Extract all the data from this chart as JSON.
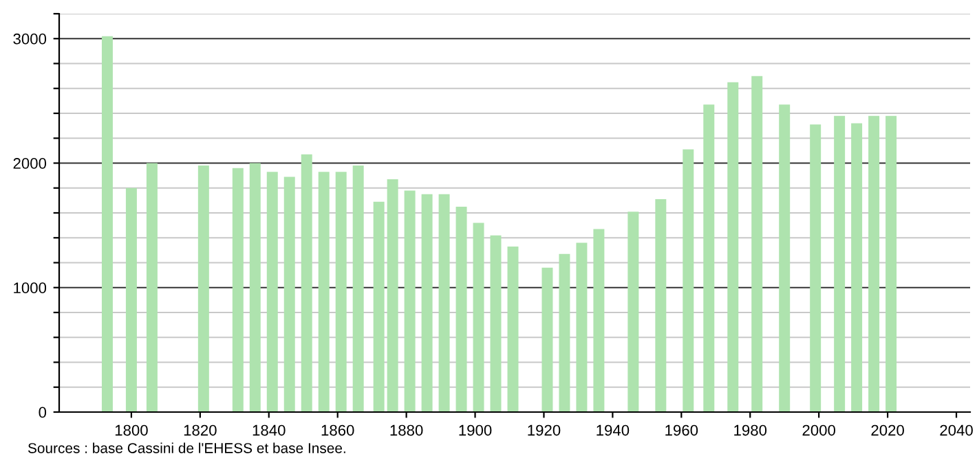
{
  "chart_data": {
    "type": "bar",
    "x": [
      1793,
      1800,
      1806,
      1821,
      1831,
      1836,
      1841,
      1846,
      1851,
      1856,
      1861,
      1866,
      1872,
      1876,
      1881,
      1886,
      1891,
      1896,
      1901,
      1906,
      1911,
      1921,
      1926,
      1931,
      1936,
      1946,
      1954,
      1962,
      1968,
      1975,
      1982,
      1990,
      1999,
      2006,
      2011,
      2016,
      2021
    ],
    "values": [
      3020,
      1800,
      2000,
      1980,
      1960,
      2000,
      1930,
      1890,
      2070,
      1930,
      1930,
      1980,
      1690,
      1870,
      1780,
      1750,
      1750,
      1650,
      1520,
      1420,
      1330,
      1160,
      1270,
      1360,
      1470,
      1610,
      1710,
      2110,
      2470,
      2650,
      2700,
      2470,
      2310,
      2380,
      2320,
      2380,
      2380
    ],
    "color": "#aee3ae",
    "xlim": [
      1779,
      2044
    ],
    "xticks": [
      1800,
      1820,
      1840,
      1860,
      1880,
      1900,
      1920,
      1940,
      1960,
      1980,
      2000,
      2020,
      2040
    ],
    "ylim": [
      0,
      3200
    ],
    "yticks": [
      0,
      {
        "value": 200,
        "label": null
      },
      {
        "value": 400,
        "label": null
      },
      {
        "value": 600,
        "label": null
      },
      {
        "value": 800,
        "label": null
      },
      1000,
      {
        "value": 1200,
        "label": null
      },
      {
        "value": 1400,
        "label": null
      },
      {
        "value": 1600,
        "label": null
      },
      {
        "value": 1800,
        "label": null
      },
      2000,
      {
        "value": 2200,
        "label": null
      },
      {
        "value": 2400,
        "label": null
      },
      {
        "value": 2600,
        "label": null
      },
      {
        "value": 2800,
        "label": null
      },
      3000,
      {
        "value": 3200,
        "label": null
      }
    ],
    "grid": "y",
    "annotations": [
      "Sources : base Cassini de l'EHESS et base Insee."
    ]
  }
}
